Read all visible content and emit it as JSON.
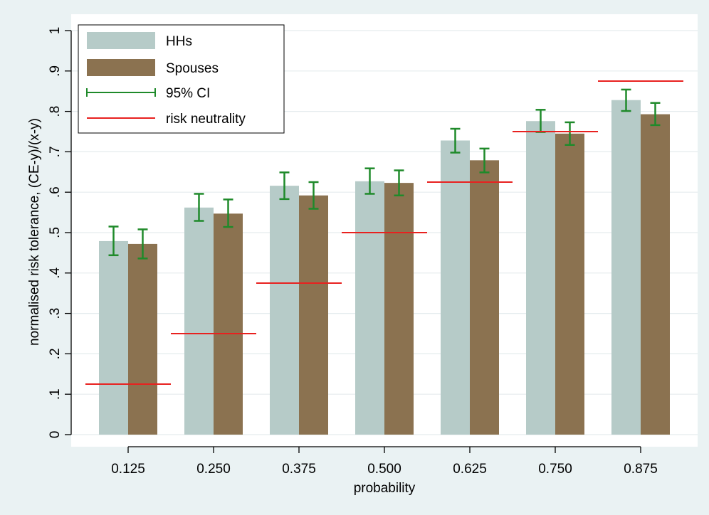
{
  "chart_data": {
    "type": "bar",
    "title": "",
    "xlabel": "probability",
    "ylabel": "normalised risk tolerance, (CE-y)/(x-y)",
    "categories": [
      "0.125",
      "0.250",
      "0.375",
      "0.500",
      "0.625",
      "0.750",
      "0.875"
    ],
    "ylim": [
      0,
      1
    ],
    "yticks": [
      0,
      0.1,
      0.2,
      0.3,
      0.4,
      0.5,
      0.6,
      0.7,
      0.8,
      0.9,
      1
    ],
    "ytick_labels": [
      "0",
      ".1",
      ".2",
      ".3",
      ".4",
      ".5",
      ".6",
      ".7",
      ".8",
      ".9",
      "1"
    ],
    "grid": true,
    "legend_position": "top-left",
    "series": [
      {
        "name": "HHs",
        "color": "#b6cbc8",
        "values": [
          0.479,
          0.562,
          0.616,
          0.627,
          0.728,
          0.776,
          0.828
        ],
        "ci_low": [
          0.444,
          0.529,
          0.583,
          0.596,
          0.698,
          0.749,
          0.801
        ],
        "ci_high": [
          0.515,
          0.596,
          0.649,
          0.659,
          0.757,
          0.804,
          0.854
        ]
      },
      {
        "name": "Spouses",
        "color": "#8b7250",
        "values": [
          0.472,
          0.547,
          0.592,
          0.623,
          0.679,
          0.745,
          0.793
        ],
        "ci_low": [
          0.436,
          0.514,
          0.559,
          0.592,
          0.649,
          0.717,
          0.766
        ],
        "ci_high": [
          0.508,
          0.582,
          0.625,
          0.654,
          0.708,
          0.773,
          0.821
        ]
      }
    ],
    "risk_neutrality": {
      "name": "risk neutrality",
      "color": "#e8211f",
      "values": [
        0.125,
        0.25,
        0.375,
        0.5,
        0.625,
        0.75,
        0.875
      ]
    },
    "ci": {
      "name": "95% CI",
      "color": "#1f8a2a"
    },
    "legend": [
      "HHs",
      "Spouses",
      "95% CI",
      "risk neutrality"
    ]
  }
}
